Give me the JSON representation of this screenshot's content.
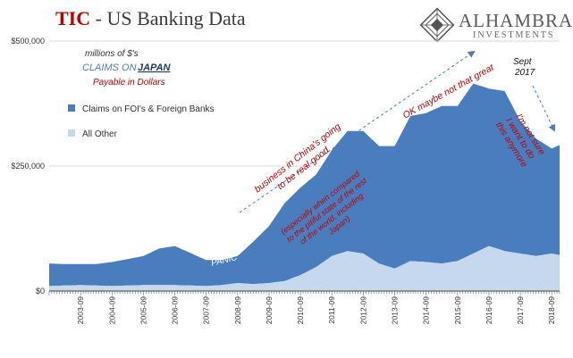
{
  "header": {
    "title_prefix": "TIC",
    "title_rest": " - US Banking Data",
    "logo_name": "ALHAMBRA",
    "logo_sub": "INVESTMENTS"
  },
  "colors": {
    "foreign_banks": "#4a7dbd",
    "all_other": "#c5d8ee",
    "annotation_red": "#c00000",
    "arrow_blue": "#4a7dbd",
    "title_red": "#c00000"
  },
  "annotations": {
    "units": "millions of $'s",
    "claims_on": "CLAIMS ON",
    "japan": "JAPAN",
    "payable": "Payable in Dollars",
    "china_1": "business in China's going",
    "china_2": "to be real good",
    "compare_1": "(especially when compared",
    "compare_2": "to the pitiful state of the rest",
    "compare_3": "of the world, including",
    "compare_4": "Japan)",
    "ok": "OK maybe not that great",
    "sept": "Sept",
    "sept_year": "2017",
    "notsure_1": "I'm not sure",
    "notsure_2": "I want to do",
    "notsure_3": "this anymore",
    "panic": "PANIC"
  },
  "chart_data": {
    "type": "area",
    "stacked": true,
    "y_unit": "millions of $'s",
    "ylim": [
      0,
      500000
    ],
    "y_ticks": [
      0,
      250000,
      500000
    ],
    "y_tick_labels": [
      "$0",
      "$250,000",
      "$500,000"
    ],
    "x_ticks": [
      "2003-09",
      "2004-09",
      "2005-09",
      "2006-09",
      "2007-09",
      "2008-09",
      "2009-09",
      "2010-09",
      "2011-09",
      "2012-09",
      "2013-09",
      "2014-09",
      "2015-09",
      "2016-09",
      "2017-09",
      "2018-09"
    ],
    "x_range": [
      "2002-09",
      "2018-12"
    ],
    "legend_position": "left",
    "series": [
      {
        "name": "All Other",
        "x": [
          "2002-09",
          "2003-09",
          "2004-09",
          "2005-09",
          "2006-09",
          "2007-09",
          "2008-03",
          "2008-09",
          "2009-03",
          "2009-09",
          "2010-03",
          "2010-09",
          "2011-03",
          "2011-09",
          "2012-03",
          "2012-09",
          "2013-03",
          "2013-09",
          "2014-03",
          "2014-09",
          "2015-03",
          "2015-09",
          "2016-03",
          "2016-09",
          "2017-03",
          "2017-09",
          "2018-03",
          "2018-09",
          "2018-12"
        ],
        "values": [
          10000,
          12000,
          10000,
          12000,
          12000,
          10000,
          12000,
          16000,
          14000,
          16000,
          20000,
          32000,
          48000,
          70000,
          80000,
          75000,
          55000,
          45000,
          60000,
          58000,
          55000,
          60000,
          75000,
          90000,
          80000,
          75000,
          70000,
          75000,
          72000
        ]
      },
      {
        "name": "Claims on FOI's & Foreign Banks",
        "x": [
          "2002-09",
          "2003-03",
          "2003-09",
          "2004-03",
          "2004-09",
          "2005-03",
          "2005-09",
          "2006-03",
          "2006-09",
          "2007-03",
          "2007-09",
          "2008-03",
          "2008-09",
          "2009-03",
          "2009-09",
          "2010-03",
          "2010-09",
          "2011-03",
          "2011-09",
          "2012-03",
          "2012-09",
          "2013-03",
          "2013-09",
          "2014-03",
          "2014-09",
          "2015-03",
          "2015-09",
          "2016-03",
          "2016-09",
          "2017-03",
          "2017-09",
          "2018-03",
          "2018-09",
          "2018-12"
        ],
        "values": [
          45000,
          43000,
          42000,
          43000,
          48000,
          53000,
          58000,
          73000,
          78000,
          65000,
          52000,
          50000,
          54000,
          85000,
          114000,
          156000,
          175000,
          185000,
          212000,
          240000,
          245000,
          235000,
          245000,
          290000,
          298000,
          315000,
          310000,
          340000,
          315000,
          320000,
          265000,
          235000,
          210000,
          220000
        ]
      }
    ]
  }
}
